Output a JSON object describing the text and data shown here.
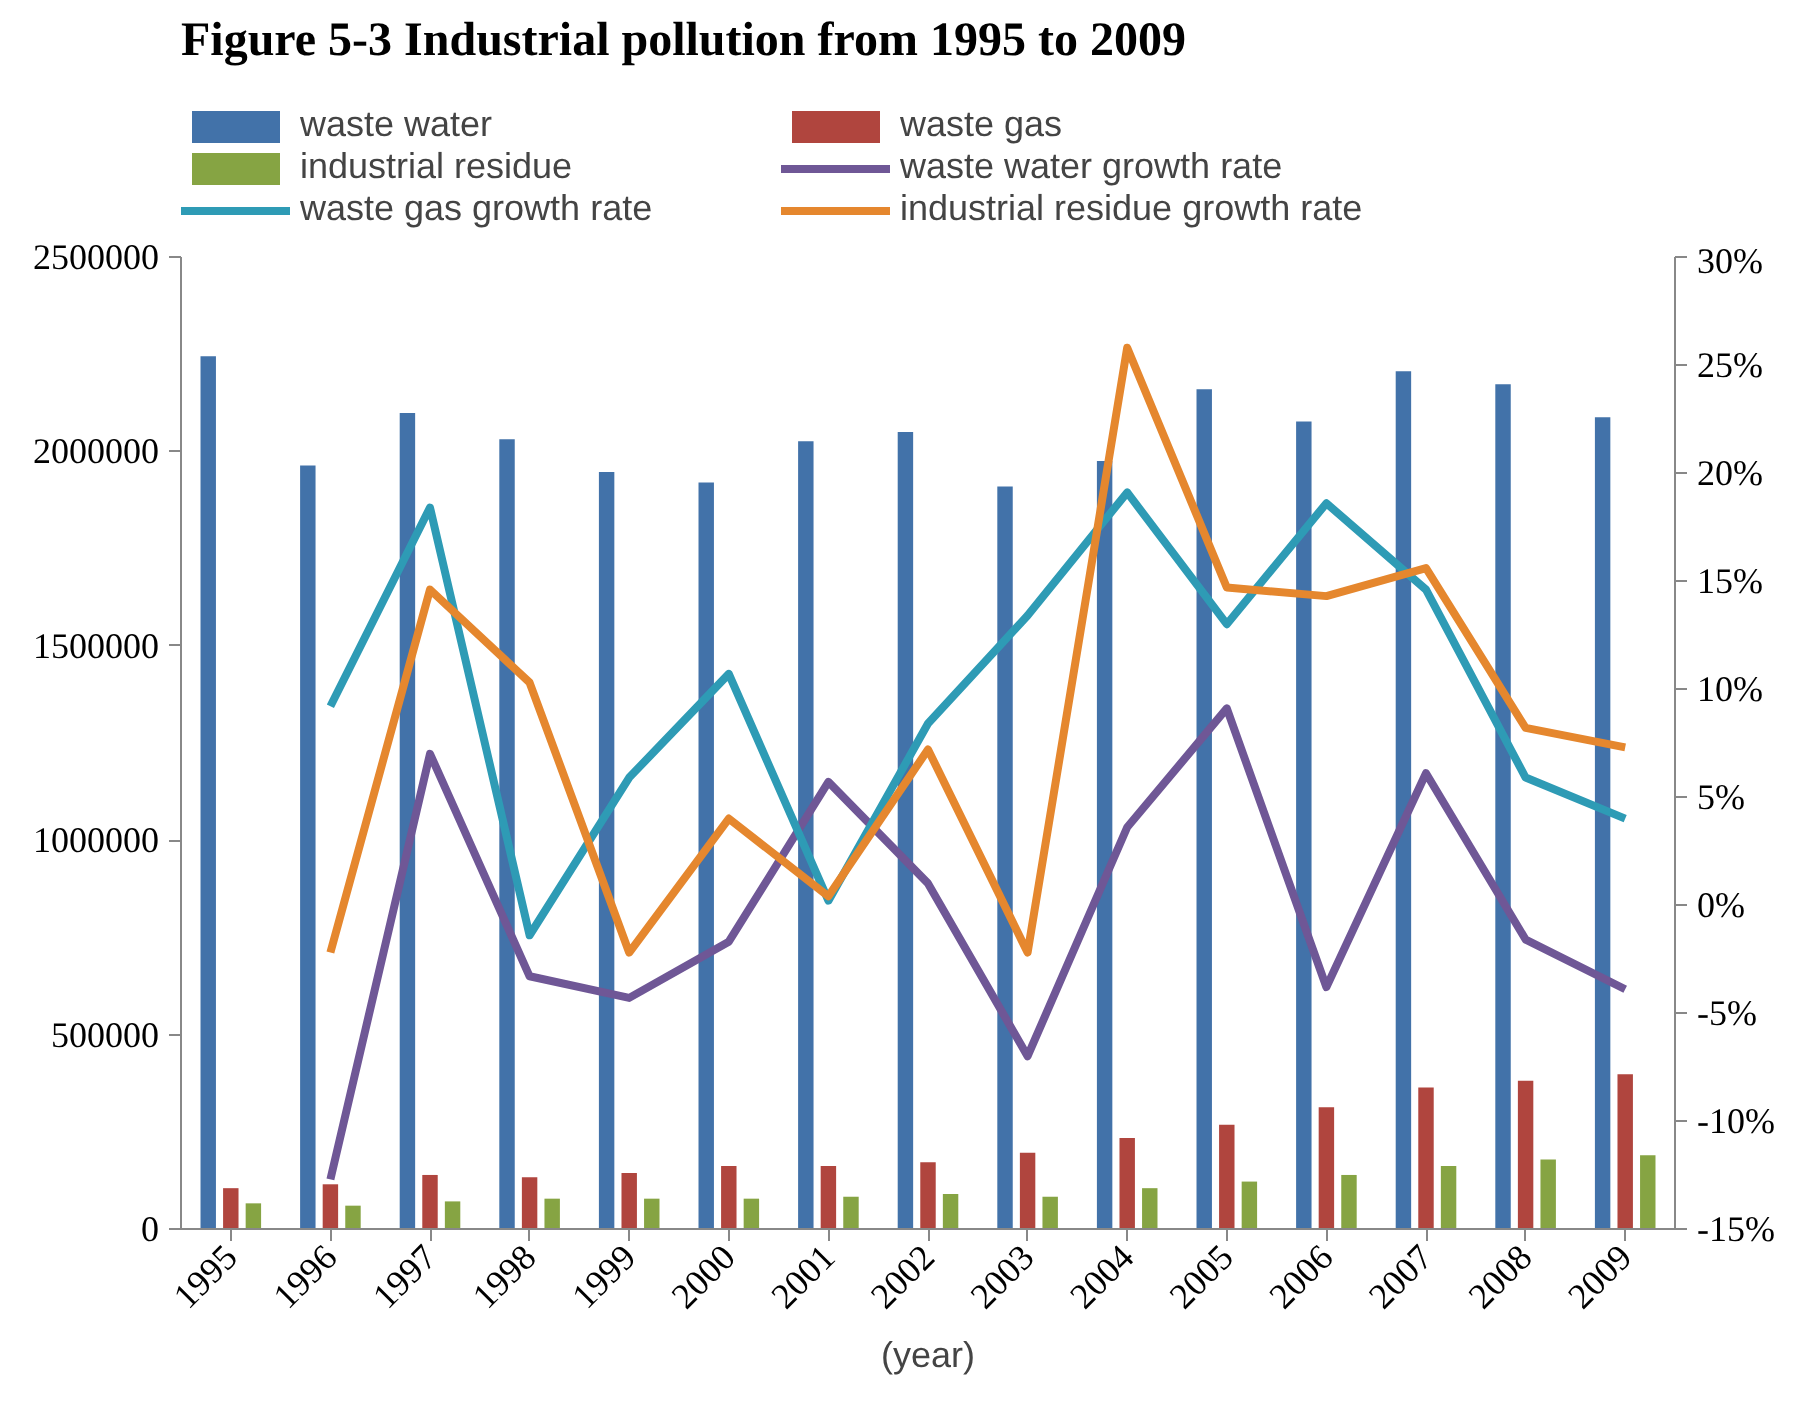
{
  "chart_data": {
    "type": "bar",
    "title": "Figure 5-3 Industrial pollution from 1995 to 2009",
    "xlabel": "(year)",
    "categories": [
      "1995",
      "1996",
      "1997",
      "1998",
      "1999",
      "2000",
      "2001",
      "2002",
      "2003",
      "2004",
      "2005",
      "2006",
      "2007",
      "2008",
      "2009"
    ],
    "series": [
      {
        "name": "waste water",
        "color": "#4272a9",
        "values": [
          2245000,
          1964000,
          2099000,
          2031000,
          1947000,
          1920000,
          2026000,
          2050000,
          1910000,
          1975000,
          2160000,
          2077000,
          2206000,
          2173000,
          2088000
        ]
      },
      {
        "name": "waste gas",
        "color": "#b0453e",
        "values": [
          105000,
          115000,
          139000,
          133000,
          144000,
          162000,
          162000,
          172000,
          196000,
          234000,
          268000,
          313000,
          364000,
          381000,
          398000
        ]
      },
      {
        "name": "industrial residue",
        "color": "#86a443",
        "values": [
          66000,
          60000,
          71000,
          78000,
          78000,
          78000,
          83000,
          90000,
          83000,
          105000,
          122000,
          139000,
          162000,
          179000,
          190000
        ]
      },
      {
        "name": "waste water growth rate",
        "type": "line",
        "axis": "y2",
        "color": "#6f5796",
        "values": [
          null,
          -12.7,
          7.0,
          -3.3,
          -4.3,
          -1.7,
          5.7,
          1.0,
          -7.0,
          3.6,
          9.1,
          -3.8,
          6.1,
          -1.6,
          -3.9
        ]
      },
      {
        "name": "waste gas growth rate",
        "type": "line",
        "axis": "y2",
        "color": "#2e9bb5",
        "values": [
          null,
          9.2,
          18.4,
          -1.4,
          5.9,
          10.7,
          0.2,
          8.4,
          13.4,
          19.1,
          13.0,
          18.6,
          14.6,
          5.9,
          4.0
        ]
      },
      {
        "name": "industrial residue growth rate",
        "type": "line",
        "axis": "y2",
        "color": "#e5872e",
        "values": [
          null,
          -2.2,
          14.6,
          10.3,
          -2.2,
          4.0,
          0.4,
          7.2,
          -2.2,
          25.8,
          14.7,
          14.3,
          15.6,
          8.2,
          7.3
        ]
      }
    ],
    "ylim": [
      0,
      2500000
    ],
    "yticks": [
      0,
      500000,
      1000000,
      1500000,
      2000000,
      2500000
    ],
    "y2lim": [
      -15,
      30
    ],
    "y2ticks": [
      {
        "value": -15,
        "label": "-15%"
      },
      {
        "value": -10,
        "label": "-10%"
      },
      {
        "value": -5,
        "label": "-5%"
      },
      {
        "value": 0,
        "label": "0%"
      },
      {
        "value": 5,
        "label": "5%"
      },
      {
        "value": 10,
        "label": "10%"
      },
      {
        "value": 15,
        "label": "15%"
      },
      {
        "value": 20,
        "label": "20%"
      },
      {
        "value": 25,
        "label": "25%"
      },
      {
        "value": 30,
        "label": "30%"
      }
    ],
    "grid": false,
    "legend": "top",
    "line_style": "solid"
  }
}
